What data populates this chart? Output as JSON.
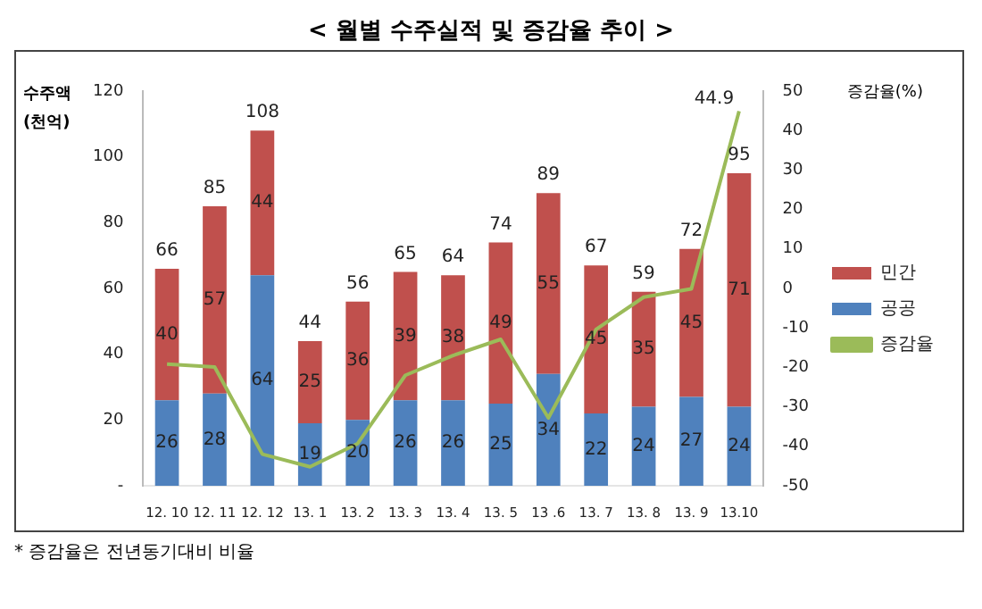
{
  "chart_data": {
    "type": "bar",
    "title": "< 월별 수주실적 및 증감율 추이 >",
    "ylabel": "수주액\n(천억)",
    "y2label": "증감율(%)",
    "categories": [
      "12. 10",
      "12. 11",
      "12. 12",
      "13. 1",
      "13. 2",
      "13. 3",
      "13. 4",
      "13. 5",
      "13 .6",
      "13. 7",
      "13. 8",
      "13. 9",
      "13.10"
    ],
    "stacked": true,
    "series": [
      {
        "name": "공공",
        "color": "#4f81bd",
        "values": [
          26,
          28,
          64,
          19,
          20,
          26,
          26,
          25,
          34,
          22,
          24,
          27,
          24
        ],
        "value_labels": [
          "26",
          "28",
          "64",
          "19",
          "20",
          "26",
          "26",
          "25",
          "34",
          "22",
          "24",
          "27",
          "24"
        ]
      },
      {
        "name": "민간",
        "color": "#c0504d",
        "values": [
          40,
          57,
          44,
          25,
          36,
          39,
          38,
          49,
          55,
          45,
          35,
          45,
          71
        ],
        "value_labels": [
          "40",
          "57",
          "44",
          "25",
          "36",
          "39",
          "38",
          "49",
          "55",
          "45",
          "35",
          "45",
          "71"
        ]
      },
      {
        "name": "증감율",
        "type": "line",
        "axis": "y2",
        "color": "#9bbb59",
        "values": [
          -19.2,
          -19.9,
          -42,
          -45.2,
          -39.3,
          -22,
          -17,
          -12.9,
          -32.8,
          -10.4,
          -2.2,
          -0.1,
          44.9
        ],
        "value_labels": [
          null,
          null,
          null,
          null,
          null,
          null,
          null,
          null,
          null,
          null,
          null,
          null,
          "44.9"
        ]
      }
    ],
    "totals": [
      "66",
      "85",
      "108",
      "44",
      "56",
      "65",
      "64",
      "74",
      "89",
      "67",
      "59",
      "72",
      "95"
    ],
    "ylim": [
      0,
      120
    ],
    "yticks": [
      {
        "value": 0,
        "label": "-"
      },
      20,
      40,
      60,
      80,
      100,
      120
    ],
    "y2lim": [
      -50,
      50
    ],
    "y2ticks": [
      -50,
      -40,
      -30,
      -20,
      -10,
      0,
      10,
      20,
      30,
      40,
      50
    ],
    "grid": false,
    "legend": "right",
    "marker": "none",
    "annotations": [
      "* 증감율은 전년동기대비 비율"
    ]
  }
}
